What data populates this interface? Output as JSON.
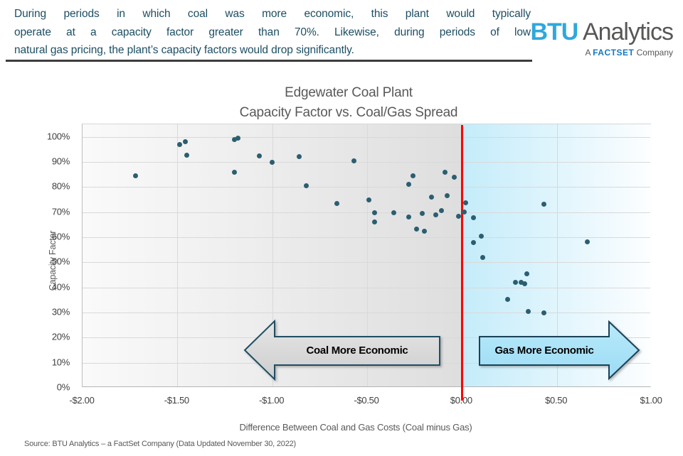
{
  "header": {
    "lines": [
      "During periods in which coal was more economic, this plant would typically",
      "operate at a capacity factor greater than 70%. Likewise, during periods of low",
      "natural gas pricing, the plant’s capacity factors would drop significantly."
    ],
    "text_color": "#1d4e63"
  },
  "logo": {
    "btu": "BTU",
    "analytics": "Analytics",
    "tagline_prefix": "A ",
    "tagline_brand": "FACTSET",
    "tagline_suffix": " Company",
    "btu_color": "#2fa8dc",
    "gray_color": "#575756",
    "factset_color": "#1377bf"
  },
  "chart_data": {
    "type": "scatter",
    "title": "Edgewater Coal Plant",
    "subtitle": "Capacity Factor vs. Coal/Gas Spread",
    "xlabel": "Difference Between Coal and Gas Costs (Coal minus Gas)",
    "ylabel": "Capacity Factor",
    "xlim": [
      -2.0,
      1.0
    ],
    "ylim": [
      0,
      105
    ],
    "x_ticks": [
      {
        "label": "-$2.00",
        "value": -2.0
      },
      {
        "label": "-$1.50",
        "value": -1.5
      },
      {
        "label": "-$1.00",
        "value": -1.0
      },
      {
        "label": "-$0.50",
        "value": -0.5
      },
      {
        "label": "$0.00",
        "value": 0.0
      },
      {
        "label": "$0.50",
        "value": 0.5
      },
      {
        "label": "$1.00",
        "value": 1.0
      }
    ],
    "y_ticks": [
      {
        "label": "0%",
        "value": 0
      },
      {
        "label": "10%",
        "value": 10
      },
      {
        "label": "20%",
        "value": 20
      },
      {
        "label": "30%",
        "value": 30
      },
      {
        "label": "40%",
        "value": 40
      },
      {
        "label": "50%",
        "value": 50
      },
      {
        "label": "60%",
        "value": 60
      },
      {
        "label": "70%",
        "value": 70
      },
      {
        "label": "80%",
        "value": 80
      },
      {
        "label": "90%",
        "value": 90
      },
      {
        "label": "100%",
        "value": 100
      }
    ],
    "grid": true,
    "divider_x": 0.0,
    "divider_color": "#ff0000",
    "point_color": "#2b5e70",
    "region_left": {
      "meaning": "coal more economic",
      "gradient": [
        "#fafafa",
        "#dedede"
      ]
    },
    "region_right": {
      "meaning": "gas more economic",
      "gradient": [
        "#c4ecfa",
        "#fdfeff"
      ]
    },
    "points": [
      [
        -1.72,
        84.5
      ],
      [
        -1.49,
        97.0
      ],
      [
        -1.46,
        98.0
      ],
      [
        -1.45,
        92.8
      ],
      [
        -1.2,
        98.8
      ],
      [
        -1.18,
        99.4
      ],
      [
        -1.2,
        85.8
      ],
      [
        -1.07,
        92.3
      ],
      [
        -1.0,
        89.8
      ],
      [
        -0.86,
        92.0
      ],
      [
        -0.82,
        80.4
      ],
      [
        -0.66,
        73.5
      ],
      [
        -0.57,
        90.4
      ],
      [
        -0.49,
        74.8
      ],
      [
        -0.46,
        69.9
      ],
      [
        -0.46,
        66.2
      ],
      [
        -0.36,
        69.9
      ],
      [
        -0.28,
        81.2
      ],
      [
        -0.28,
        68.1
      ],
      [
        -0.26,
        84.5
      ],
      [
        -0.24,
        63.2
      ],
      [
        -0.21,
        69.5
      ],
      [
        -0.2,
        62.4
      ],
      [
        -0.16,
        75.9
      ],
      [
        -0.14,
        69.0
      ],
      [
        -0.11,
        70.5
      ],
      [
        -0.09,
        85.9
      ],
      [
        -0.08,
        76.5
      ],
      [
        -0.04,
        84.0
      ],
      [
        -0.02,
        68.3
      ],
      [
        0.01,
        70.0
      ],
      [
        0.02,
        73.7
      ],
      [
        0.06,
        67.9
      ],
      [
        0.06,
        57.9
      ],
      [
        0.1,
        60.3
      ],
      [
        0.11,
        51.8
      ],
      [
        0.24,
        35.2
      ],
      [
        0.28,
        42.0
      ],
      [
        0.31,
        41.9
      ],
      [
        0.33,
        41.4
      ],
      [
        0.34,
        45.3
      ],
      [
        0.35,
        30.4
      ],
      [
        0.43,
        73.3
      ],
      [
        0.43,
        29.8
      ],
      [
        0.66,
        58.2
      ]
    ],
    "annotations": [
      {
        "label": "Coal More Economic",
        "direction": "left",
        "fill_top": "#e6e6e6",
        "fill_bottom": "#cdcdcd",
        "border": "#1f4e63"
      },
      {
        "label": "Gas More Economic",
        "direction": "right",
        "fill_top": "#b9e9fa",
        "fill_bottom": "#9bdcf5",
        "border": "#1b4257"
      }
    ]
  },
  "footer": {
    "source": "Source: BTU Analytics – a FactSet Company (Data Updated November 30, 2022)"
  }
}
